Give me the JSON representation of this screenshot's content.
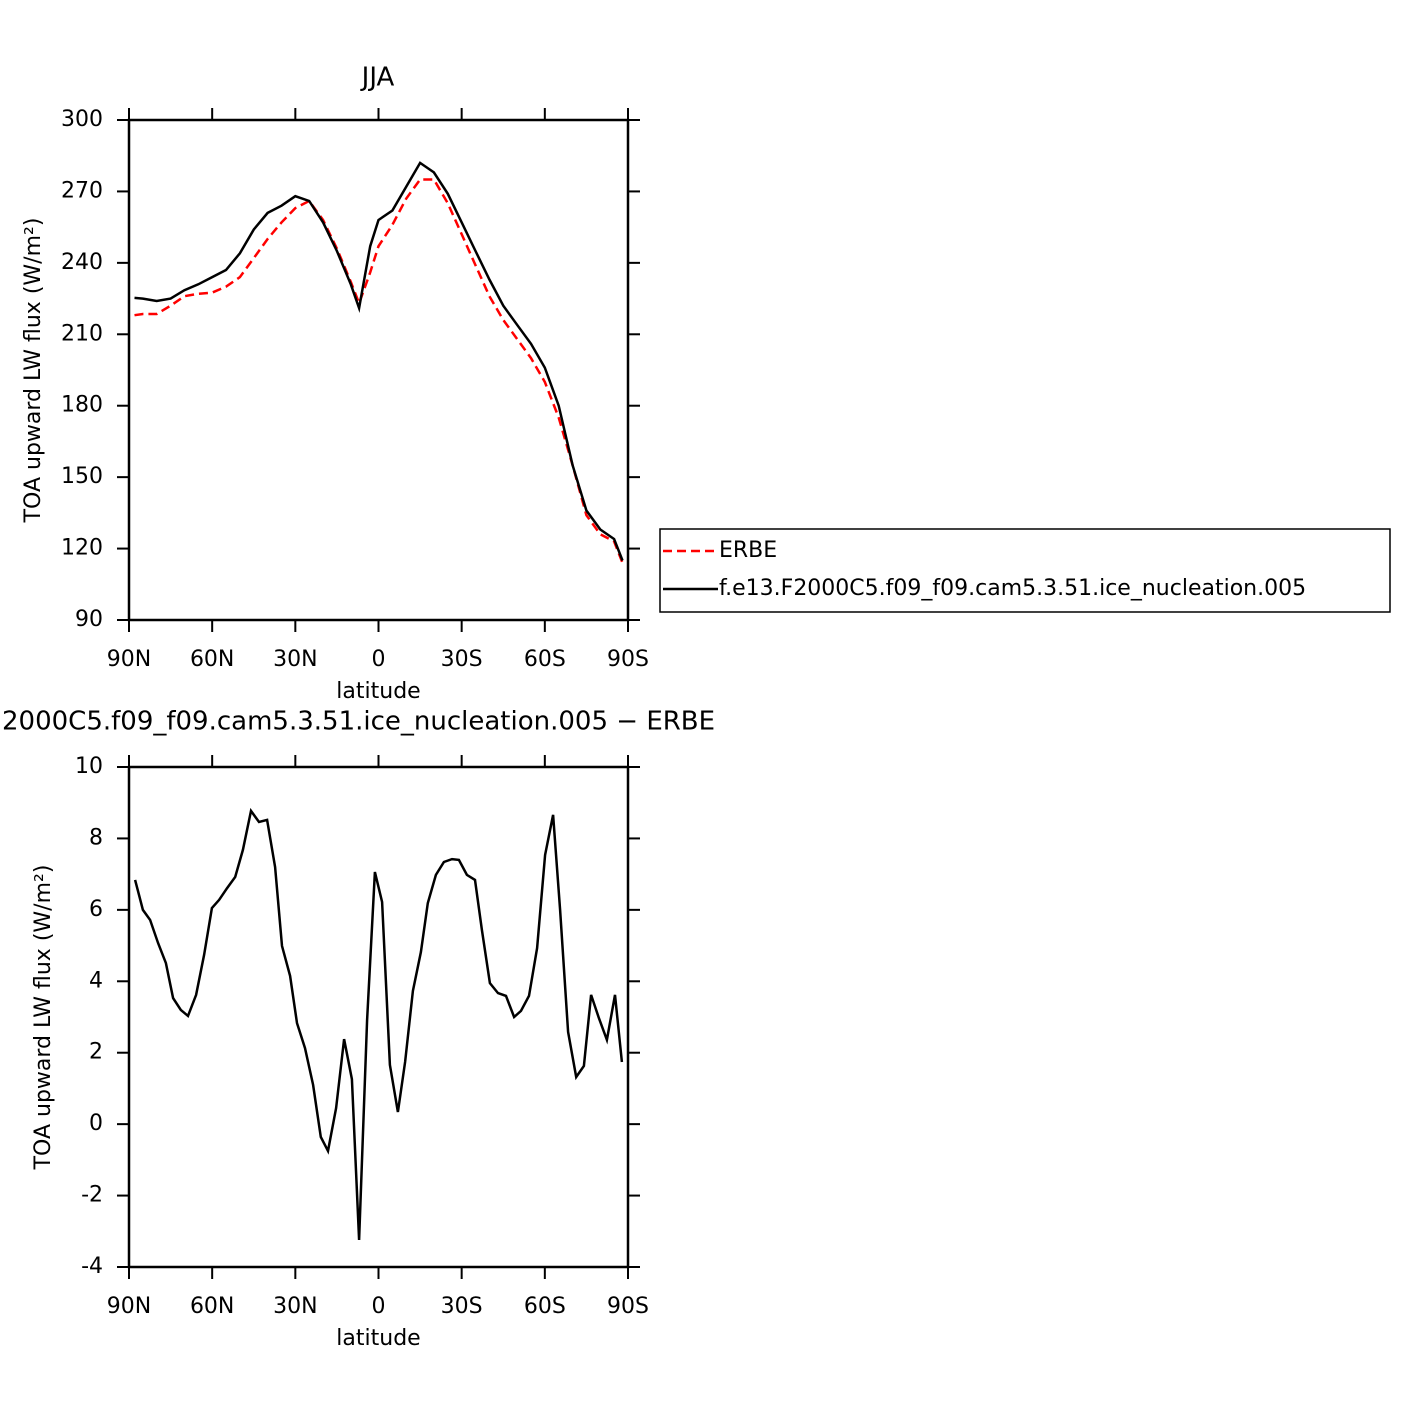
{
  "chart_data": [
    {
      "type": "line",
      "title": "JJA",
      "xlabel": "latitude",
      "ylabel": "TOA upward LW flux (W/m²)",
      "x": [
        88,
        85,
        80,
        75,
        70,
        65,
        60,
        55,
        50,
        45,
        40,
        35,
        30,
        25,
        20,
        15,
        10,
        7,
        3,
        0,
        -5,
        -10,
        -15,
        -20,
        -25,
        -30,
        -35,
        -40,
        -45,
        -50,
        -55,
        -60,
        -65,
        -70,
        -75,
        -80,
        -85,
        -88
      ],
      "series": [
        {
          "name": "ERBE",
          "color": "#ff0000",
          "line_style": "dashed",
          "values": [
            218,
            218.5,
            218.5,
            222,
            226,
            227,
            227.5,
            230,
            234,
            242,
            250,
            257,
            263,
            266,
            258,
            246,
            232,
            223,
            236,
            247,
            256,
            267,
            275,
            275,
            265,
            252,
            239,
            226,
            216,
            208,
            200,
            190,
            175,
            155,
            134,
            126,
            123,
            114
          ]
        },
        {
          "name": "f.e13.F2000C5.f09_f09.cam5.3.51.ice_nucleation.005",
          "color": "#000000",
          "line_style": "solid",
          "values": [
            225.3,
            225,
            224,
            225,
            228.5,
            231,
            234,
            237,
            244,
            254,
            261,
            264,
            268,
            266,
            257,
            245,
            231,
            221,
            247,
            258,
            262,
            272,
            282,
            278,
            269,
            257,
            245,
            233,
            222,
            214,
            206,
            196,
            180,
            155,
            136,
            128,
            124,
            115
          ]
        }
      ],
      "xlim": [
        90,
        -90
      ],
      "xticks": [
        {
          "value": 90,
          "label": "90N"
        },
        {
          "value": 60,
          "label": "60N"
        },
        {
          "value": 30,
          "label": "30N"
        },
        0,
        {
          "value": -30,
          "label": "30S"
        },
        {
          "value": -60,
          "label": "60S"
        },
        {
          "value": -90,
          "label": "90S"
        }
      ],
      "ylim": [
        90,
        300
      ],
      "yticks": [
        90,
        120,
        150,
        180,
        210,
        240,
        270,
        300
      ],
      "legend": "right"
    },
    {
      "type": "line",
      "title": "2000C5.f09_f09.cam5.3.51.ice_nucleation.005 − ERBE",
      "xlabel": "latitude",
      "ylabel": "TOA upward LW flux (W/m²)",
      "x": [
        87.8,
        85.0,
        82.4,
        79.5,
        76.7,
        74.1,
        71.3,
        68.7,
        65.8,
        62.9,
        60.1,
        57.5,
        54.6,
        51.7,
        48.9,
        46.0,
        43.1,
        40.2,
        37.3,
        34.8,
        31.9,
        29.4,
        26.5,
        23.6,
        20.8,
        18.2,
        15.3,
        12.4,
        9.6,
        7.0,
        4.1,
        1.3,
        -1.3,
        -4.1,
        -7.0,
        -9.6,
        -12.4,
        -15.3,
        -17.8,
        -20.7,
        -23.6,
        -26.5,
        -29.0,
        -31.9,
        -34.8,
        -37.3,
        -40.2,
        -43.1,
        -46.0,
        -48.9,
        -51.4,
        -54.3,
        -57.2,
        -60.1,
        -63.0,
        -65.5,
        -68.4,
        -71.3,
        -74.1,
        -76.7,
        -79.5,
        -82.4,
        -85.3,
        -87.8
      ],
      "series": [
        {
          "color": "#000000",
          "values": [
            6.84,
            6.0,
            5.72,
            5.07,
            4.51,
            3.53,
            3.2,
            3.03,
            3.62,
            4.74,
            6.05,
            6.28,
            6.61,
            6.92,
            7.68,
            8.77,
            8.46,
            8.52,
            7.2,
            4.99,
            4.15,
            2.83,
            2.13,
            1.1,
            -0.36,
            -0.75,
            0.45,
            2.38,
            1.26,
            -3.24,
            2.92,
            7.06,
            6.22,
            1.66,
            0.34,
            1.74,
            3.73,
            4.82,
            6.19,
            6.98,
            7.34,
            7.42,
            7.4,
            6.98,
            6.84,
            5.44,
            3.95,
            3.67,
            3.59,
            3.0,
            3.17,
            3.59,
            4.93,
            7.54,
            8.66,
            6.0,
            2.58,
            1.32,
            1.63,
            3.62,
            2.97,
            2.36,
            3.62,
            1.74
          ]
        }
      ],
      "xlim": [
        90,
        -90
      ],
      "xticks": [
        {
          "value": 90,
          "label": "90N"
        },
        {
          "value": 60,
          "label": "60N"
        },
        {
          "value": 30,
          "label": "30N"
        },
        0,
        {
          "value": -30,
          "label": "30S"
        },
        {
          "value": -60,
          "label": "60S"
        },
        {
          "value": -90,
          "label": "90S"
        }
      ],
      "ylim": [
        -4,
        10
      ],
      "yticks": [
        -4,
        -2,
        0,
        2,
        4,
        6,
        8,
        10
      ]
    }
  ]
}
